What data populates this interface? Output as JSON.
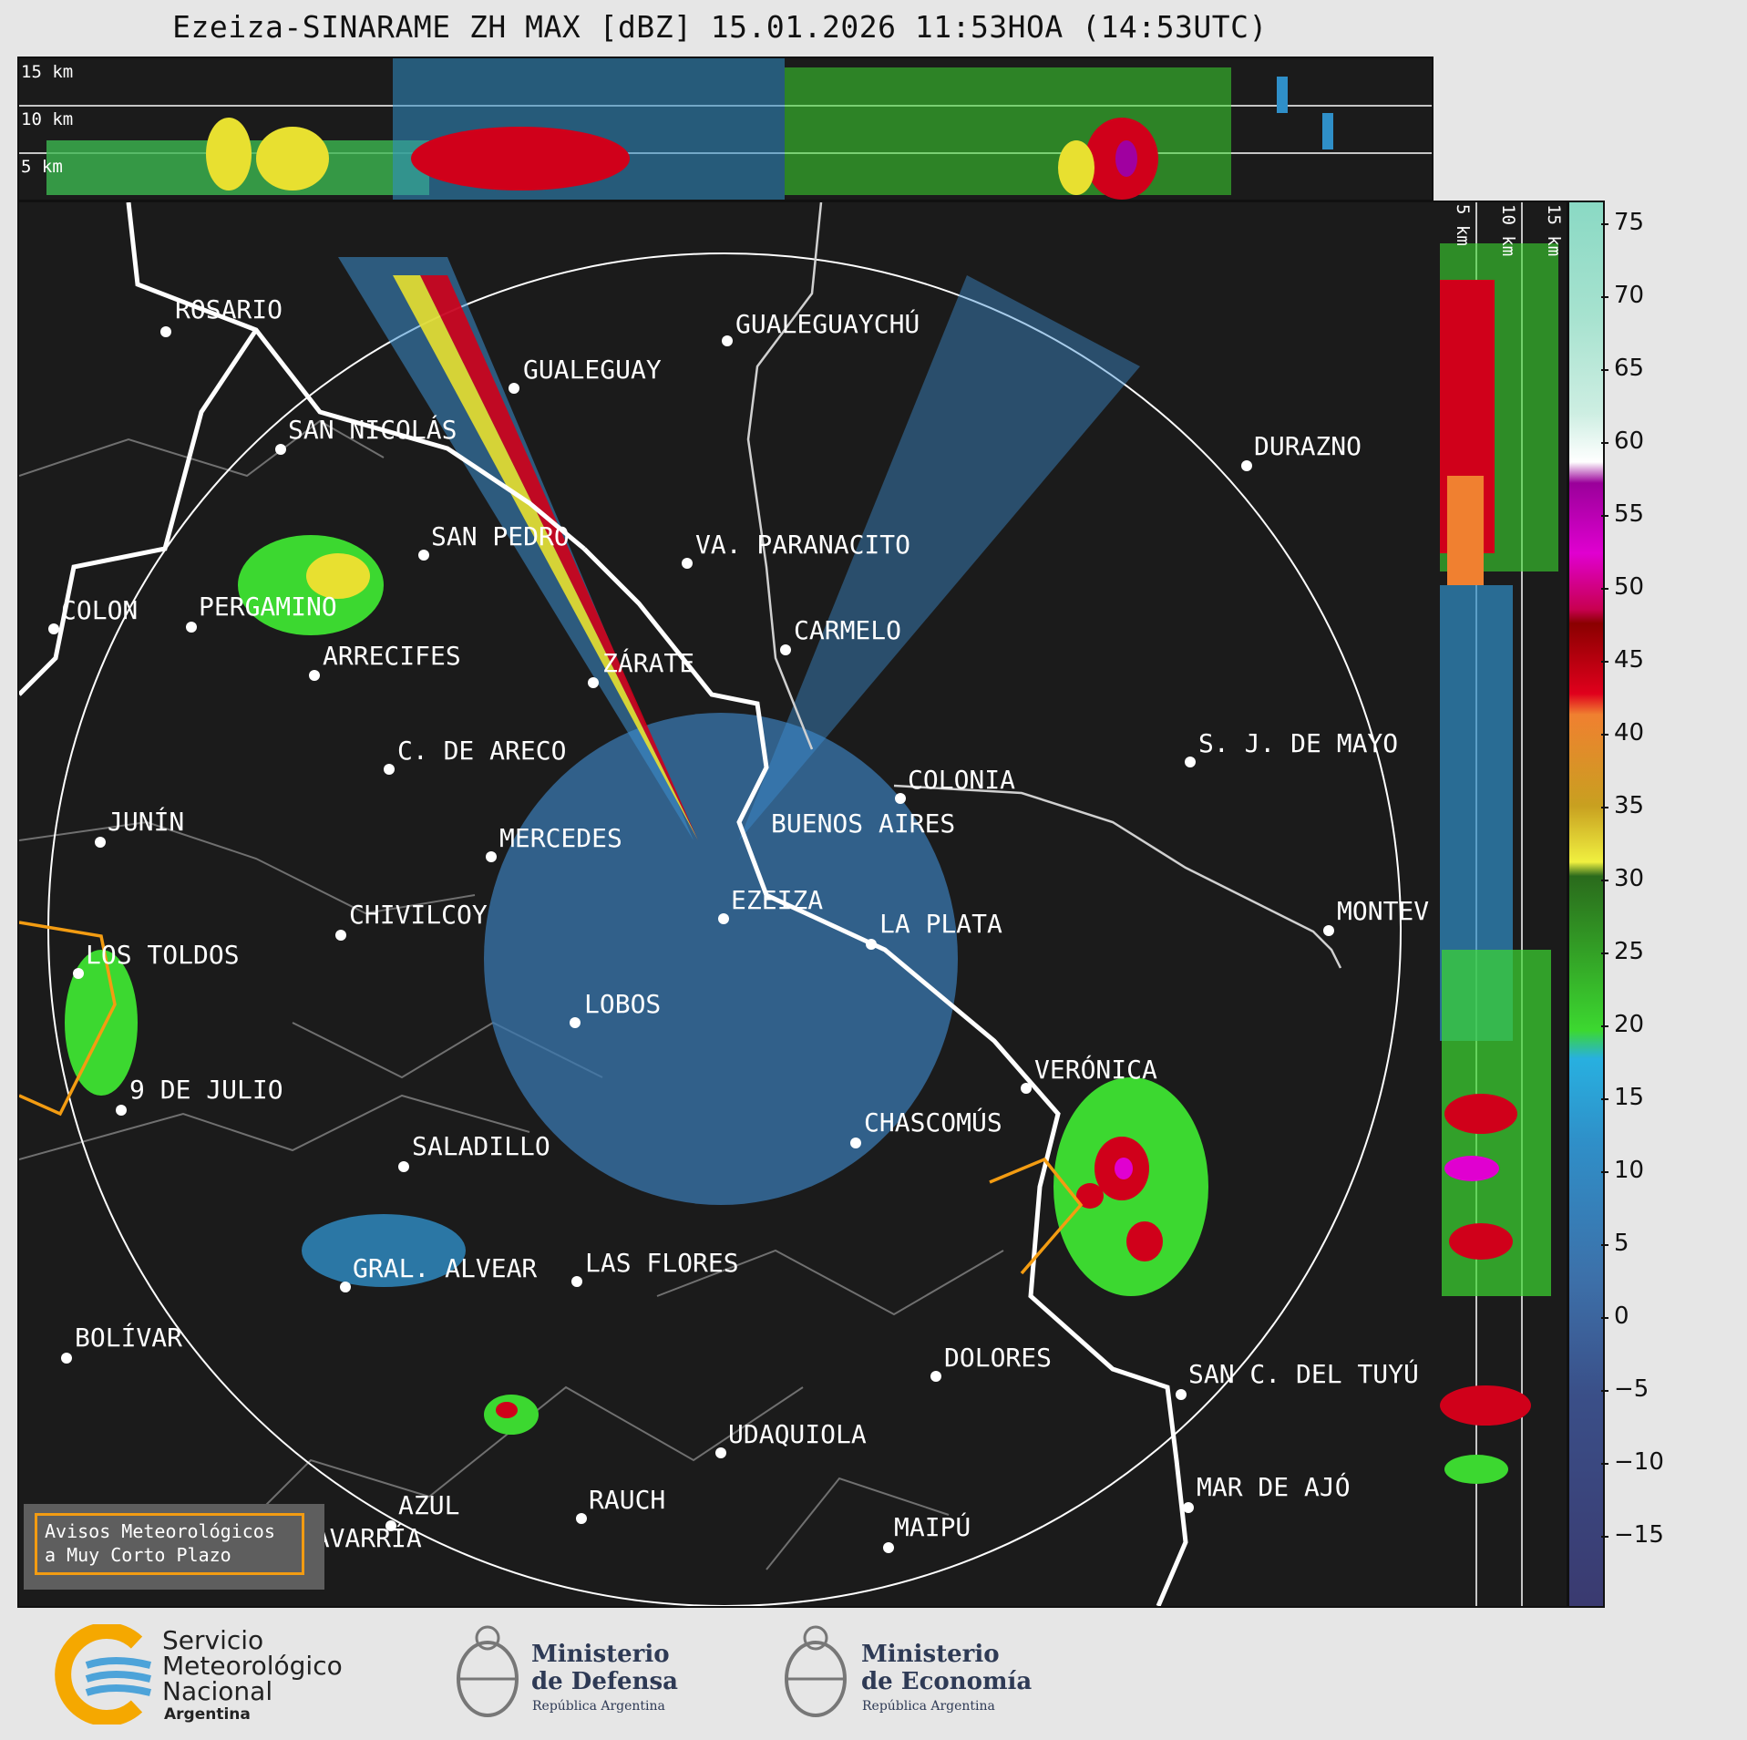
{
  "title": "Ezeiza-SINARAME ZH MAX [dBZ] 15.01.2026 11:53HOA (14:53UTC)",
  "cross_section_top": {
    "levels": [
      "15 km",
      "10 km",
      "5 km"
    ]
  },
  "cross_section_right": {
    "levels": [
      "5 km",
      "10 km",
      "15 km"
    ]
  },
  "colorbar": {
    "unit": "dBZ",
    "ticks": [
      "75",
      "70",
      "65",
      "60",
      "55",
      "50",
      "45",
      "40",
      "35",
      "30",
      "25",
      "20",
      "15",
      "10",
      "5",
      "0",
      "−5",
      "−10",
      "−15"
    ]
  },
  "cities": [
    {
      "name": "ROSARIO"
    },
    {
      "name": "GUALEGUAYCHÚ"
    },
    {
      "name": "GUALEGUAY"
    },
    {
      "name": "SAN NICOLÁS"
    },
    {
      "name": "DURAZNO"
    },
    {
      "name": "SAN PEDRO"
    },
    {
      "name": "VA. PARANACITO"
    },
    {
      "name": "COLON"
    },
    {
      "name": "PERGAMINO"
    },
    {
      "name": "CARMELO"
    },
    {
      "name": "ARRECIFES"
    },
    {
      "name": "ZÁRATE"
    },
    {
      "name": "C. DE ARECO"
    },
    {
      "name": "S. J. DE MAYO"
    },
    {
      "name": "COLONIA"
    },
    {
      "name": "JUNÍN"
    },
    {
      "name": "BUENOS AIRES"
    },
    {
      "name": "MERCEDES"
    },
    {
      "name": "EZEIZA"
    },
    {
      "name": "CHIVILCOY"
    },
    {
      "name": "LA PLATA"
    },
    {
      "name": "MONTEV"
    },
    {
      "name": "LOS TOLDOS"
    },
    {
      "name": "LOBOS"
    },
    {
      "name": "VERÓNICA"
    },
    {
      "name": "9 DE JULIO"
    },
    {
      "name": "CHASCOMÚS"
    },
    {
      "name": "SALADILLO"
    },
    {
      "name": "GRAL. ALVEAR"
    },
    {
      "name": "LAS FLORES"
    },
    {
      "name": "BOLÍVAR"
    },
    {
      "name": "DOLORES"
    },
    {
      "name": "SAN C. DEL TUYÚ"
    },
    {
      "name": "UDAQUIOLA"
    },
    {
      "name": "MAR DE AJÓ"
    },
    {
      "name": "AZUL"
    },
    {
      "name": "RAUCH"
    },
    {
      "name": "OLAVARRÍA"
    },
    {
      "name": "MAIPÚ"
    }
  ],
  "warning_box": {
    "line1": "Avisos Meteorológicos",
    "line2": "a Muy Corto Plazo",
    "color": "#f39c12"
  },
  "logos": {
    "smn": {
      "line1": "Servicio",
      "line2": "Meteorológico",
      "line3": "Nacional",
      "line4": "Argentina"
    },
    "defensa": {
      "line1": "Ministerio",
      "line2": "de Defensa",
      "line3": "República Argentina"
    },
    "economia": {
      "line1": "Ministerio",
      "line2": "de Economía",
      "line3": "República Argentina"
    }
  }
}
